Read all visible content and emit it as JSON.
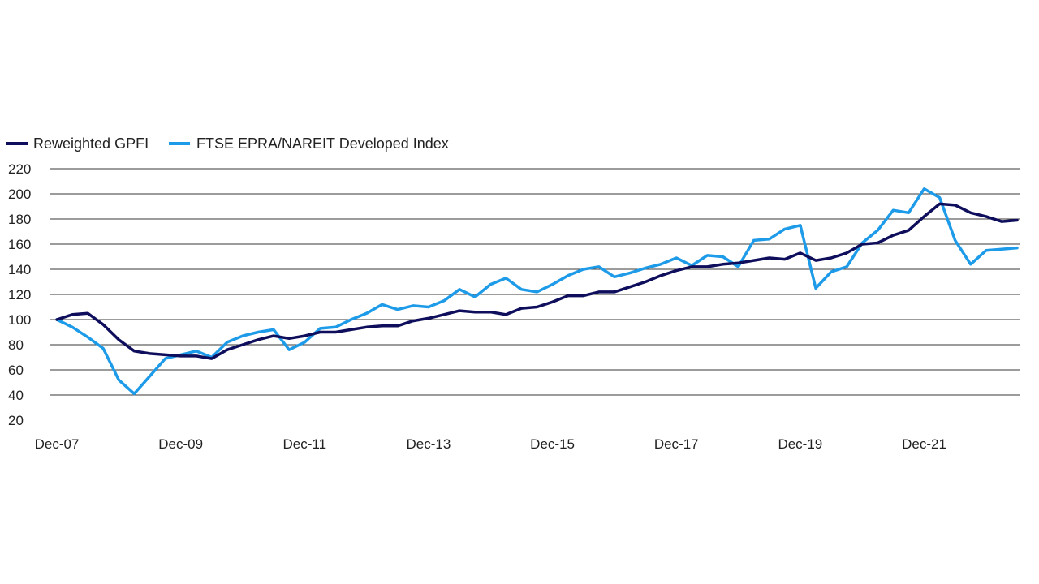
{
  "chart_data": {
    "type": "line",
    "title": "",
    "xlabel": "",
    "ylabel": "",
    "ylim": [
      20,
      220
    ],
    "yticks": [
      20,
      40,
      60,
      80,
      100,
      120,
      140,
      160,
      180,
      200,
      220
    ],
    "xticks": [
      "Dec-07",
      "Dec-09",
      "Dec-11",
      "Dec-13",
      "Dec-15",
      "Dec-17",
      "Dec-19",
      "Dec-21"
    ],
    "grid": "horizontal",
    "legend_position": "top-left",
    "series": [
      {
        "name": "Reweighted GPFI",
        "color": "#0e0e5c",
        "values": [
          100,
          104,
          105,
          96,
          84,
          75,
          73,
          72,
          71,
          71,
          69,
          76,
          80,
          84,
          87,
          85,
          87,
          90,
          90,
          92,
          94,
          95,
          95,
          99,
          101,
          104,
          107,
          106,
          106,
          104,
          109,
          110,
          114,
          119,
          119,
          122,
          122,
          126,
          130,
          135,
          139,
          142,
          142,
          144,
          145,
          147,
          149,
          148,
          153,
          147,
          149,
          153,
          160,
          161,
          167,
          171,
          182,
          192,
          191,
          185,
          182,
          178,
          179
        ]
      },
      {
        "name": "FTSE EPRA/NAREIT Developed Index",
        "color": "#1e9be8",
        "values": [
          100,
          94,
          86,
          77,
          52,
          41,
          55,
          69,
          72,
          75,
          70,
          82,
          87,
          90,
          92,
          76,
          82,
          93,
          94,
          100,
          105,
          112,
          108,
          111,
          110,
          115,
          124,
          118,
          128,
          133,
          124,
          122,
          128,
          135,
          140,
          142,
          134,
          137,
          141,
          144,
          149,
          143,
          151,
          150,
          142,
          163,
          164,
          172,
          175,
          125,
          138,
          142,
          161,
          171,
          187,
          185,
          204,
          197,
          163,
          144,
          155,
          156,
          157
        ]
      }
    ]
  }
}
